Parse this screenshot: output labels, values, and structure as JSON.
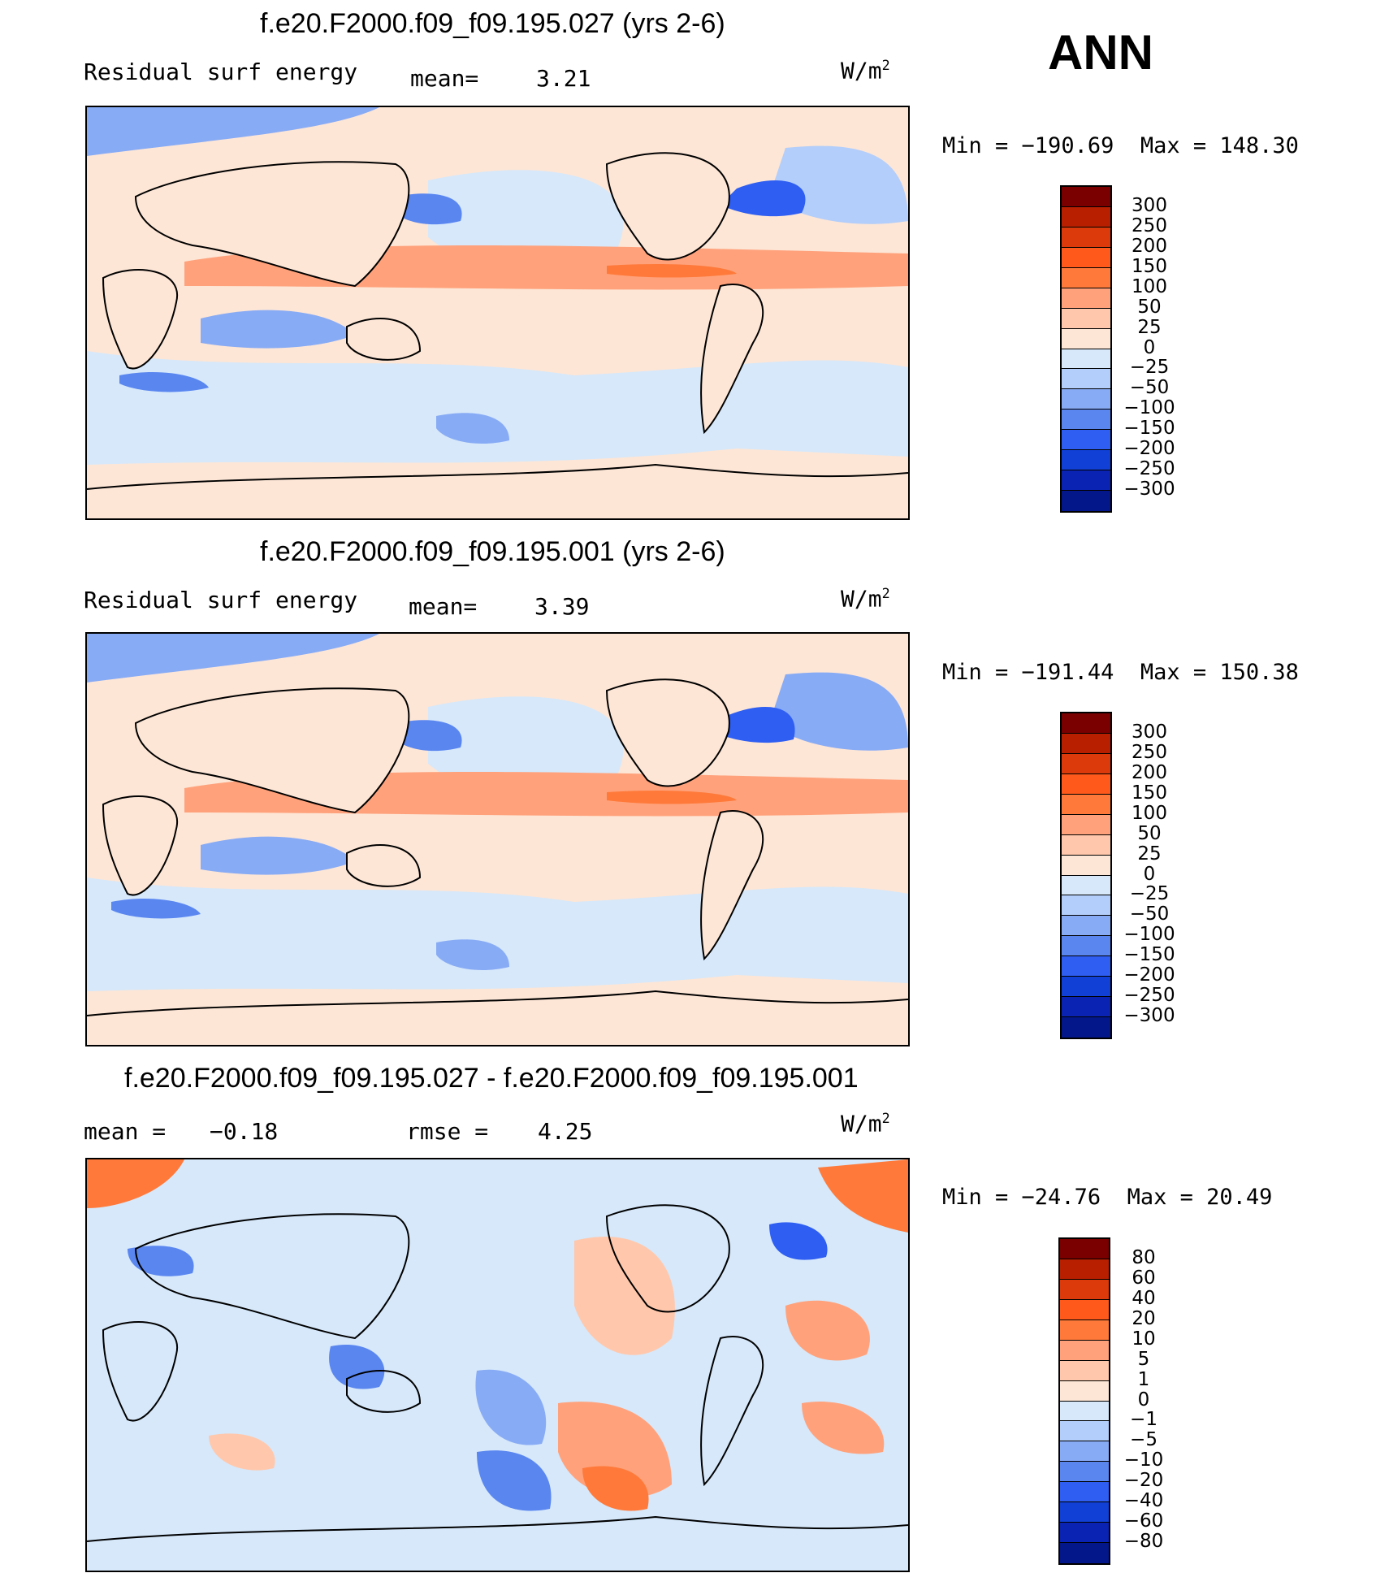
{
  "season": "ANN",
  "units_base": "W/m",
  "units_exp": "2",
  "colorbar_colors": [
    "#7a0000",
    "#b81f00",
    "#dc3a0a",
    "#ff5a1c",
    "#ff7a3a",
    "#ffa27c",
    "#ffc8ac",
    "#fde6d6",
    "#d6e8fa",
    "#b3cefa",
    "#88abf5",
    "#5a86f0",
    "#2e5ef2",
    "#1140d6",
    "#0b23b3",
    "#03178a"
  ],
  "panels": [
    {
      "title": "f.e20.F2000.f09_f09.195.027 (yrs 2-6)",
      "left_label": "Residual surf energy",
      "mid_label": "mean=",
      "mid_value": "3.21",
      "min_label": "Min =",
      "min_value": "−190.69",
      "max_label": "Max =",
      "max_value": "148.30",
      "levels": [
        "300",
        "250",
        "200",
        "150",
        "100",
        "50",
        "25",
        "0",
        "−25",
        "−50",
        "−100",
        "−150",
        "−200",
        "−250",
        "−300"
      ]
    },
    {
      "title": "f.e20.F2000.f09_f09.195.001 (yrs 2-6)",
      "left_label": "Residual surf energy",
      "mid_label": "mean=",
      "mid_value": "3.39",
      "min_label": "Min =",
      "min_value": "−191.44",
      "max_label": "Max =",
      "max_value": "150.38",
      "levels": [
        "300",
        "250",
        "200",
        "150",
        "100",
        "50",
        "25",
        "0",
        "−25",
        "−50",
        "−100",
        "−150",
        "−200",
        "−250",
        "−300"
      ]
    },
    {
      "title": "f.e20.F2000.f09_f09.195.027 - f.e20.F2000.f09_f09.195.001",
      "left_label": "mean =",
      "left_value": "−0.18",
      "mid_label": "rmse =",
      "mid_value": "4.25",
      "min_label": "Min =",
      "min_value": "−24.76",
      "max_label": "Max =",
      "max_value": "20.49",
      "levels": [
        "80",
        "60",
        "40",
        "20",
        "10",
        "5",
        "1",
        "0",
        "−1",
        "−5",
        "−10",
        "−20",
        "−40",
        "−60",
        "−80"
      ]
    }
  ]
}
